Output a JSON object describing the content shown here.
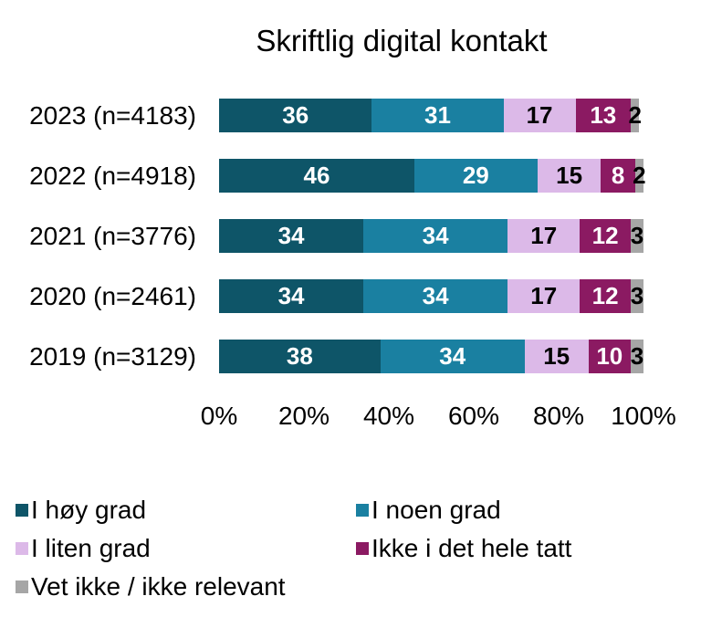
{
  "chart_data": {
    "type": "bar",
    "orientation": "horizontal_stacked",
    "title": "Skriftlig digital kontakt",
    "categories": [
      "2023 (n=4183)",
      "2022 (n=4918)",
      "2021 (n=3776)",
      "2020 (n=2461)",
      "2019 (n=3129)"
    ],
    "series": [
      {
        "name": "I høy grad",
        "color": "#0E5568",
        "label_color": "#FFFFFF",
        "values": [
          36,
          46,
          34,
          34,
          38
        ]
      },
      {
        "name": "I noen grad",
        "color": "#1A80A1",
        "label_color": "#FFFFFF",
        "values": [
          31,
          29,
          34,
          34,
          34
        ]
      },
      {
        "name": "I liten grad",
        "color": "#DCB9E8",
        "label_color": "#000000",
        "values": [
          17,
          15,
          17,
          17,
          15
        ]
      },
      {
        "name": "Ikke i det hele tatt",
        "color": "#8B1A62",
        "label_color": "#FFFFFF",
        "values": [
          13,
          8,
          12,
          12,
          10
        ]
      },
      {
        "name": "Vet ikke / ikke relevant",
        "color": "#A6A6A6",
        "label_color": "#000000",
        "values": [
          2,
          2,
          3,
          3,
          3
        ]
      }
    ],
    "x_axis": {
      "ticks": [
        "0%",
        "20%",
        "40%",
        "60%",
        "80%",
        "100%"
      ],
      "range": [
        0,
        100
      ],
      "grid": false
    },
    "legend_position": "bottom-left",
    "value_labels": "inside-center",
    "background_color": "#FFFFFF",
    "text_color": "#000000"
  }
}
